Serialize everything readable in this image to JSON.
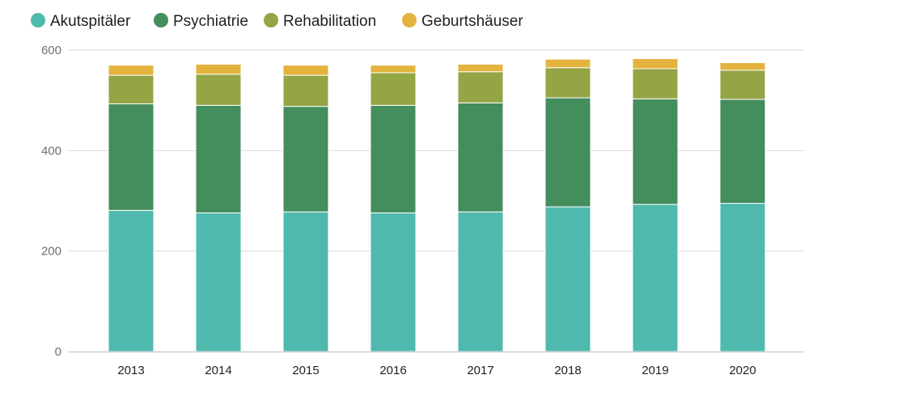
{
  "chart_data": {
    "type": "bar",
    "stacked": true,
    "title": "",
    "xlabel": "",
    "ylabel": "",
    "categories": [
      "2013",
      "2014",
      "2015",
      "2016",
      "2017",
      "2018",
      "2019",
      "2020"
    ],
    "ylim": [
      0,
      600
    ],
    "yticks": [
      0,
      200,
      400,
      600
    ],
    "grid": true,
    "legend": "top-left",
    "series": [
      {
        "name": "Akutspitäler",
        "color": "#4fb9ad",
        "values": [
          281,
          276,
          278,
          276,
          278,
          288,
          293,
          295
        ]
      },
      {
        "name": "Psychiatrie",
        "color": "#448d5c",
        "values": [
          212,
          214,
          210,
          214,
          217,
          217,
          210,
          207
        ]
      },
      {
        "name": "Rehabilitation",
        "color": "#94a545",
        "values": [
          57,
          62,
          62,
          65,
          62,
          60,
          60,
          58
        ]
      },
      {
        "name": "Geburtshäuser",
        "color": "#e3b33e",
        "values": [
          20,
          20,
          20,
          15,
          15,
          17,
          20,
          15
        ]
      }
    ]
  }
}
